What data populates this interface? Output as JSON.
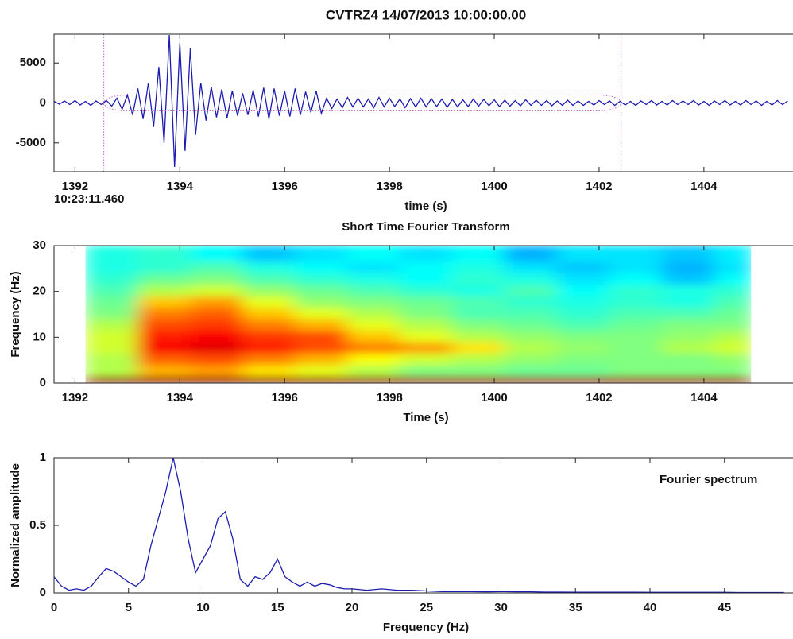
{
  "chart_data": [
    {
      "type": "line",
      "title": "CVTRZ4 14/07/2013  10:00:00.00",
      "xlabel": "time (s)",
      "annotation": "10:23:11.460",
      "x": [
        1391.6,
        1391.7,
        1391.8,
        1391.9,
        1392.0,
        1392.1,
        1392.2,
        1392.3,
        1392.4,
        1392.5,
        1392.6,
        1392.7,
        1392.8,
        1392.9,
        1393.0,
        1393.1,
        1393.2,
        1393.3,
        1393.4,
        1393.5,
        1393.6,
        1393.7,
        1393.8,
        1393.9,
        1394.0,
        1394.1,
        1394.2,
        1394.3,
        1394.4,
        1394.5,
        1394.6,
        1394.7,
        1394.8,
        1394.9,
        1395.0,
        1395.1,
        1395.2,
        1395.3,
        1395.4,
        1395.5,
        1395.6,
        1395.7,
        1395.8,
        1395.9,
        1396.0,
        1396.1,
        1396.2,
        1396.3,
        1396.4,
        1396.5,
        1396.6,
        1396.7,
        1396.8,
        1396.9,
        1397.0,
        1397.1,
        1397.2,
        1397.3,
        1397.4,
        1397.5,
        1397.6,
        1397.7,
        1397.8,
        1397.9,
        1398.0,
        1398.1,
        1398.2,
        1398.3,
        1398.4,
        1398.5,
        1398.6,
        1398.7,
        1398.8,
        1398.9,
        1399.0,
        1399.1,
        1399.2,
        1399.3,
        1399.4,
        1399.5,
        1399.6,
        1399.7,
        1399.8,
        1399.9,
        1400.0,
        1400.1,
        1400.2,
        1400.3,
        1400.4,
        1400.5,
        1400.6,
        1400.7,
        1400.8,
        1400.9,
        1401.0,
        1401.1,
        1401.2,
        1401.3,
        1401.4,
        1401.5,
        1401.6,
        1401.7,
        1401.8,
        1401.9,
        1402.0,
        1402.1,
        1402.2,
        1402.3,
        1402.4,
        1402.5,
        1402.6,
        1402.7,
        1402.8,
        1402.9,
        1403.0,
        1403.1,
        1403.2,
        1403.3,
        1403.4,
        1403.5,
        1403.6,
        1403.7,
        1403.8,
        1403.9,
        1404.0,
        1404.1,
        1404.2,
        1404.3,
        1404.4,
        1404.5,
        1404.6,
        1404.7,
        1404.8,
        1404.9,
        1405.0,
        1405.1,
        1405.2,
        1405.3,
        1405.4,
        1405.5,
        1405.6
      ],
      "series": [
        {
          "color": "#1c1cb0",
          "values": [
            200,
            -150,
            250,
            -200,
            300,
            -250,
            200,
            -300,
            250,
            -200,
            300,
            -400,
            600,
            -800,
            1000,
            -1500,
            1800,
            -2000,
            2500,
            -3000,
            4500,
            -5000,
            8500,
            -8000,
            7500,
            -6000,
            6800,
            -4000,
            2500,
            -2200,
            2000,
            -1800,
            1700,
            -1900,
            1500,
            -1600,
            1200,
            -1500,
            1600,
            -1700,
            1900,
            -2000,
            1800,
            -1600,
            1500,
            -1700,
            1800,
            -1500,
            1400,
            -1200,
            1500,
            -1300,
            600,
            -700,
            500,
            -600,
            700,
            -500,
            600,
            -500,
            500,
            -600,
            700,
            -500,
            600,
            -450,
            500,
            -600,
            550,
            -500,
            600,
            -500,
            550,
            -450,
            500,
            -550,
            450,
            -500,
            400,
            -450,
            500,
            -400,
            450,
            -350,
            400,
            -450,
            350,
            -400,
            300,
            -350,
            400,
            -300,
            350,
            -300,
            300,
            -350,
            250,
            -300,
            350,
            -300,
            250,
            -300,
            200,
            -250,
            300,
            -200,
            250,
            -300,
            200,
            -250,
            200,
            -300,
            250,
            -200,
            300,
            -250,
            200,
            -250,
            300,
            -200,
            250,
            -200,
            300,
            -250,
            200,
            -300,
            250,
            -200,
            300,
            -250,
            200,
            -250,
            300,
            -200,
            250,
            -300,
            200,
            -250,
            300,
            -200,
            250
          ]
        }
      ],
      "window": {
        "x": [
          1392.55,
          1402.42
        ],
        "amplitude": 1000,
        "color": "#c060c0"
      },
      "xlim": [
        1391.6,
        1405.7
      ],
      "ylim": [
        -8600,
        8600
      ],
      "xticks": [
        1392,
        1394,
        1396,
        1398,
        1400,
        1402,
        1404
      ],
      "yticks": [
        -5000,
        0,
        5000
      ]
    },
    {
      "type": "heatmap",
      "title": "Short Time Fourier Transform",
      "xlabel": "Time (s)",
      "ylabel": "Frequency (Hz)",
      "x_edges": [
        1392.2,
        1393.2,
        1394.2,
        1395.2,
        1396.2,
        1397.2,
        1398.2,
        1399.2,
        1400.2,
        1401.2,
        1402.2,
        1403.2,
        1404.2,
        1404.9
      ],
      "y_edges": [
        0,
        1.5,
        4,
        6.5,
        9,
        11.5,
        14,
        16.5,
        19,
        21.5,
        24,
        26.5,
        30
      ],
      "z": [
        [
          0.97,
          0.97,
          0.97,
          0.97,
          0.97,
          0.97,
          0.97,
          0.97,
          0.97,
          0.97,
          0.97,
          0.97,
          0.97
        ],
        [
          0.55,
          0.7,
          0.72,
          0.65,
          0.6,
          0.55,
          0.5,
          0.5,
          0.48,
          0.48,
          0.5,
          0.5,
          0.5
        ],
        [
          0.55,
          0.78,
          0.8,
          0.75,
          0.7,
          0.62,
          0.58,
          0.55,
          0.52,
          0.5,
          0.5,
          0.5,
          0.52
        ],
        [
          0.58,
          0.88,
          0.9,
          0.85,
          0.8,
          0.75,
          0.72,
          0.65,
          0.55,
          0.52,
          0.5,
          0.55,
          0.58
        ],
        [
          0.58,
          0.85,
          0.88,
          0.82,
          0.8,
          0.68,
          0.6,
          0.55,
          0.52,
          0.5,
          0.5,
          0.52,
          0.55
        ],
        [
          0.55,
          0.8,
          0.82,
          0.75,
          0.7,
          0.6,
          0.55,
          0.5,
          0.48,
          0.45,
          0.48,
          0.5,
          0.5
        ],
        [
          0.5,
          0.75,
          0.78,
          0.68,
          0.6,
          0.55,
          0.5,
          0.45,
          0.45,
          0.42,
          0.45,
          0.45,
          0.48
        ],
        [
          0.48,
          0.68,
          0.72,
          0.6,
          0.52,
          0.5,
          0.48,
          0.45,
          0.42,
          0.4,
          0.42,
          0.4,
          0.45
        ],
        [
          0.45,
          0.55,
          0.58,
          0.52,
          0.48,
          0.45,
          0.42,
          0.4,
          0.45,
          0.38,
          0.42,
          0.4,
          0.42
        ],
        [
          0.42,
          0.48,
          0.5,
          0.45,
          0.42,
          0.4,
          0.38,
          0.42,
          0.4,
          0.35,
          0.38,
          0.32,
          0.38
        ],
        [
          0.4,
          0.42,
          0.45,
          0.4,
          0.38,
          0.35,
          0.38,
          0.4,
          0.35,
          0.32,
          0.35,
          0.3,
          0.35
        ],
        [
          0.4,
          0.42,
          0.38,
          0.32,
          0.35,
          0.38,
          0.35,
          0.38,
          0.3,
          0.35,
          0.35,
          0.32,
          0.36
        ]
      ],
      "colormap": "jet",
      "clim": [
        0,
        1
      ],
      "xlim": [
        1391.6,
        1405.7
      ],
      "ylim": [
        0,
        30
      ],
      "xticks": [
        1392,
        1394,
        1396,
        1398,
        1400,
        1402,
        1404
      ],
      "yticks": [
        0,
        10,
        20,
        30
      ]
    },
    {
      "type": "line",
      "annotation": "Fourier spectrum",
      "xlabel": "Frequency (Hz)",
      "ylabel": "Normalized amplitude",
      "x": [
        0,
        0.5,
        1,
        1.5,
        2,
        2.5,
        3,
        3.5,
        4,
        4.5,
        5,
        5.5,
        6,
        6.5,
        7,
        7.5,
        8,
        8.5,
        9,
        9.5,
        10,
        10.5,
        11,
        11.5,
        12,
        12.5,
        13,
        13.5,
        14,
        14.5,
        15,
        15.5,
        16,
        16.5,
        17,
        17.5,
        18,
        18.5,
        19,
        19.5,
        20,
        21,
        22,
        23,
        24,
        25,
        26,
        27,
        28,
        29,
        30,
        31,
        32,
        33,
        34,
        35,
        36,
        37,
        38,
        39,
        40,
        41,
        42,
        43,
        44,
        45,
        46,
        47,
        48,
        49
      ],
      "series": [
        {
          "color": "#1c1cb0",
          "values": [
            0.12,
            0.05,
            0.02,
            0.03,
            0.02,
            0.05,
            0.12,
            0.18,
            0.16,
            0.12,
            0.08,
            0.05,
            0.1,
            0.35,
            0.55,
            0.75,
            1.0,
            0.75,
            0.4,
            0.15,
            0.25,
            0.35,
            0.55,
            0.6,
            0.4,
            0.1,
            0.05,
            0.12,
            0.1,
            0.15,
            0.25,
            0.12,
            0.08,
            0.05,
            0.08,
            0.05,
            0.07,
            0.06,
            0.04,
            0.03,
            0.03,
            0.02,
            0.03,
            0.02,
            0.02,
            0.015,
            0.01,
            0.01,
            0.01,
            0.008,
            0.01,
            0.008,
            0.008,
            0.006,
            0.006,
            0.005,
            0.005,
            0.005,
            0.005,
            0.005,
            0.004,
            0.004,
            0.004,
            0.004,
            0.004,
            0.004,
            0.003,
            0.003,
            0.003,
            0.003
          ]
        }
      ],
      "xlim": [
        0,
        49.6
      ],
      "ylim": [
        0,
        1
      ],
      "xticks": [
        0,
        5,
        10,
        15,
        20,
        25,
        30,
        35,
        40,
        45
      ],
      "yticks": [
        0,
        0.5,
        1
      ]
    }
  ]
}
